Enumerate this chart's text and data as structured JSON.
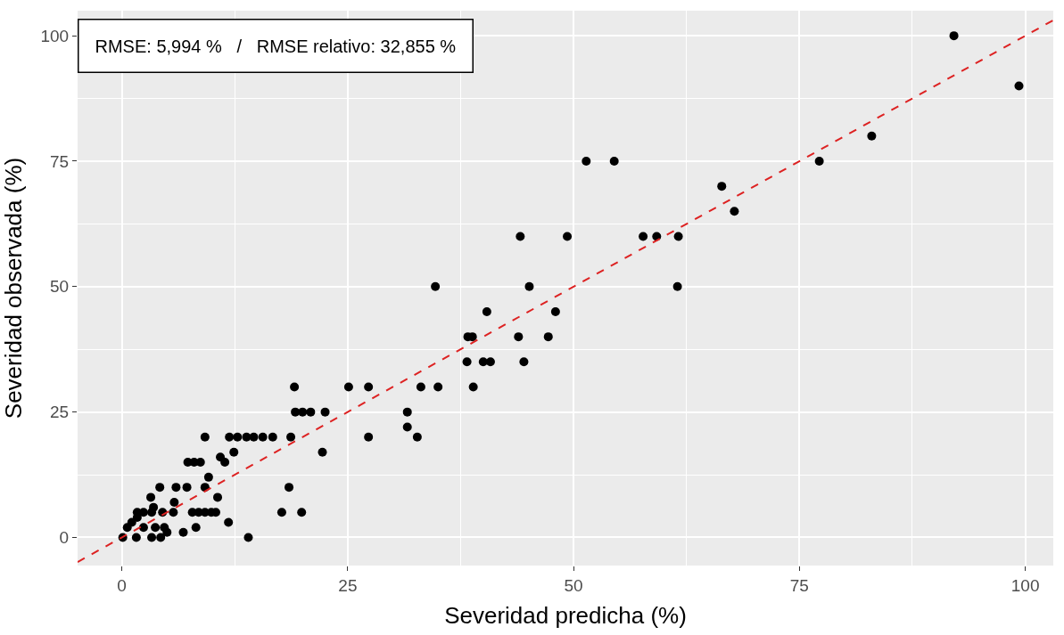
{
  "chart_data": {
    "type": "scatter",
    "xlabel": "Severidad predicha (%)",
    "ylabel": "Severidad observada (%)",
    "annotations": [
      "RMSE: 5,994 %   /   RMSE relativo: 32,855 %"
    ],
    "series": [
      {
        "color": "#000000",
        "marker": "circle",
        "x": [
          92.1,
          99.3,
          83.0,
          77.2,
          51.4,
          54.5,
          66.4,
          67.8,
          44.1,
          49.3,
          57.7,
          59.2,
          61.6,
          45.1,
          61.5,
          34.7,
          40.4,
          48.0,
          38.3,
          38.8,
          43.9,
          47.2,
          38.2,
          40.0,
          40.8,
          44.5,
          27.3,
          33.1,
          35.0,
          38.9,
          31.6,
          31.6,
          32.7,
          27.3,
          19.1,
          25.1,
          19.2,
          20.0,
          20.9,
          22.5,
          9.2,
          11.9,
          12.8,
          13.8,
          14.6,
          15.6,
          16.7,
          18.7,
          12.4,
          22.2,
          10.9,
          11.4,
          7.3,
          8.0,
          8.7,
          9.6,
          18.5,
          7.2,
          9.2,
          4.2,
          6.0,
          10.6,
          7.8,
          8.5,
          9.2,
          9.9,
          10.4,
          17.7,
          19.9,
          11.8,
          8.2,
          6.8,
          14.0,
          3.2,
          5.8,
          3.5,
          1.7,
          2.4,
          3.3,
          4.5,
          5.7,
          0.6,
          1.1,
          1.7,
          2.4,
          3.7,
          4.7,
          0.1,
          1.6,
          3.3,
          4.3,
          5.0
        ],
        "values": [
          100,
          90,
          80,
          75,
          75,
          75,
          70,
          65,
          60,
          60,
          60,
          60,
          60,
          50,
          50,
          50,
          45,
          45,
          40,
          40,
          40,
          40,
          35,
          35,
          35,
          35,
          30,
          30,
          30,
          30,
          25,
          22,
          20,
          20,
          30,
          30,
          25,
          25,
          25,
          25,
          20,
          20,
          20,
          20,
          20,
          20,
          20,
          20,
          17,
          17,
          16,
          15,
          15,
          15,
          15,
          12,
          10,
          10,
          10,
          10,
          10,
          8,
          5,
          5,
          5,
          5,
          5,
          5,
          5,
          3,
          2,
          1,
          0,
          8,
          7,
          6,
          5,
          5,
          5,
          5,
          5,
          2,
          3,
          4,
          2,
          2,
          2,
          0,
          0,
          0,
          0,
          1
        ]
      },
      {
        "type": "line",
        "color": "#dd2222",
        "line_style": "dashed",
        "marker": "none",
        "x": [
          -4.9,
          103.1
        ],
        "values": [
          -4.9,
          103.1
        ]
      }
    ],
    "xlim": [
      -4.9,
      103.1
    ],
    "ylim": [
      -5.6,
      105
    ],
    "xticks": [
      0,
      25,
      50,
      75,
      100
    ],
    "yticks": [
      0,
      25,
      50,
      75,
      100
    ],
    "grid": true
  }
}
